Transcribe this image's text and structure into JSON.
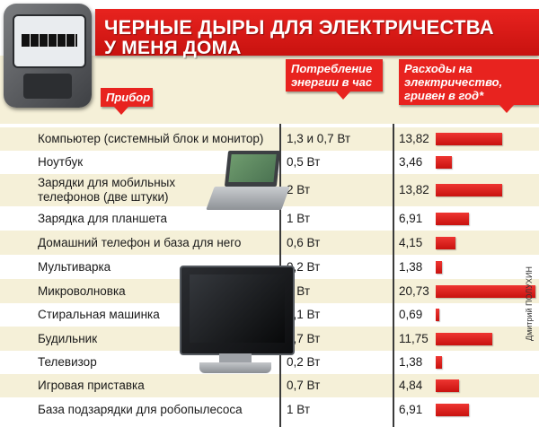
{
  "title": {
    "line1": "ЧЕРНЫЕ ДЫРЫ ДЛЯ ЭЛЕКТРИЧЕСТВА",
    "line2": "У МЕНЯ ДОМА"
  },
  "columns": {
    "device": "Прибор",
    "power": "Потребление энергии в час",
    "cost": "Расходы на электричество, гривен в год*"
  },
  "credit": "Дмитрий ПОЛУХИН",
  "colors": {
    "accent": "#e8231f",
    "band": "#f5f0d8"
  },
  "icons": [
    "electric-meter-icon",
    "laptop-icon",
    "tv-icon"
  ],
  "chart_data": {
    "type": "bar",
    "orientation": "horizontal",
    "xlim": [
      0,
      21
    ],
    "categories": [
      "Компьютер (системный блок и монитор)",
      "Ноутбук",
      "Зарядки для мобильных телефонов (две штуки)",
      "Зарядка для планшета",
      "Домашний телефон и база для него",
      "Мультиварка",
      "Микроволновка",
      "Стиральная машинка",
      "Будильник",
      "Телевизор",
      "Игровая приставка",
      "База подзарядки для робопылесоса"
    ],
    "category_lines": [
      [
        "Компьютер (системный блок и монитор)"
      ],
      [
        "Ноутбук"
      ],
      [
        "Зарядки для мобильных",
        "телефонов (две штуки)"
      ],
      [
        "Зарядка для планшета"
      ],
      [
        "Домашний телефон и база для него"
      ],
      [
        "Мультиварка"
      ],
      [
        "Микроволновка"
      ],
      [
        "Стиральная машинка"
      ],
      [
        "Будильник"
      ],
      [
        "Телевизор"
      ],
      [
        "Игровая приставка"
      ],
      [
        "База подзарядки для робопылесоса"
      ]
    ],
    "power": [
      "1,3 и 0,7 Вт",
      "0,5 Вт",
      "2 Вт",
      "1 Вт",
      "0,6 Вт",
      "0,2 Вт",
      "3 Вт",
      "0,1 Вт",
      "1,7 Вт",
      "0,2 Вт",
      "0,7 Вт",
      "1 Вт"
    ],
    "value_labels": [
      "13,82",
      "3,46",
      "13,82",
      "6,91",
      "4,15",
      "1,38",
      "20,73",
      "0,69",
      "11,75",
      "1,38",
      "4,84",
      "6,91"
    ],
    "values": [
      13.82,
      3.46,
      13.82,
      6.91,
      4.15,
      1.38,
      20.73,
      0.69,
      11.75,
      1.38,
      4.84,
      6.91
    ]
  }
}
